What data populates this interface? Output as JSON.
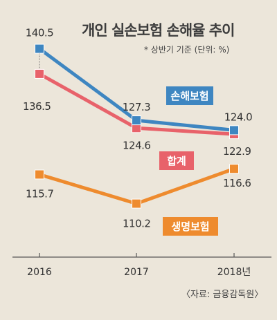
{
  "chart_data": {
    "type": "line",
    "title": "개인 실손보험 손해율 추이",
    "subtitle": "* 상반기 기준 (단위: %)",
    "source": "〈자료: 금융감독원〉",
    "categories": [
      "2016",
      "2017",
      "2018년"
    ],
    "ylim": [
      105,
      145
    ],
    "grid": false,
    "series": [
      {
        "name": "손해보험",
        "values": [
          140.5,
          127.3,
          124.0
        ],
        "color": "#3e86c1"
      },
      {
        "name": "합계",
        "values": [
          136.5,
          124.6,
          122.9
        ],
        "color": "#e8626a"
      },
      {
        "name": "생명보험",
        "values": [
          115.7,
          110.2,
          116.6
        ],
        "color": "#ee8b2e"
      }
    ]
  },
  "colors": {
    "background": "#ece6da",
    "axis": "#555555"
  }
}
